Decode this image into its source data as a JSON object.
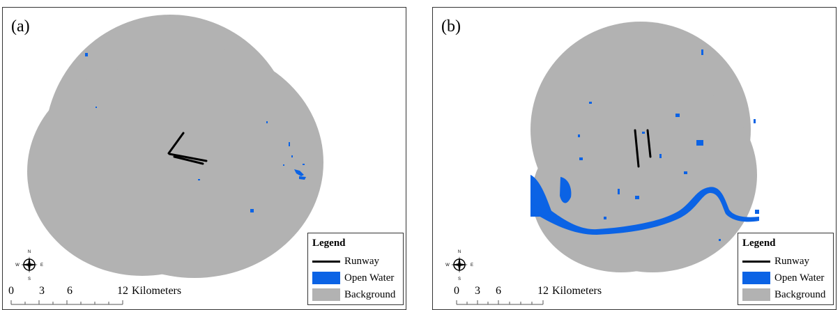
{
  "panels": [
    {
      "label": "(a)",
      "legend": {
        "title": "Legend",
        "items": [
          {
            "label": "Runway",
            "kind": "line",
            "color": "#000000"
          },
          {
            "label": "Open Water",
            "kind": "fill",
            "color": "#0b63e5"
          },
          {
            "label": "Background",
            "kind": "fill",
            "color": "#b2b2b2"
          }
        ]
      },
      "scale_bar": {
        "ticks": [
          "0",
          "3",
          "6",
          "12"
        ],
        "unit": "Kilometers"
      },
      "compass": {
        "n": "N",
        "s": "S",
        "e": "E",
        "w": "W"
      }
    },
    {
      "label": "(b)",
      "legend": {
        "title": "Legend",
        "items": [
          {
            "label": "Runway",
            "kind": "line",
            "color": "#000000"
          },
          {
            "label": "Open Water",
            "kind": "fill",
            "color": "#0b63e5"
          },
          {
            "label": "Background",
            "kind": "fill",
            "color": "#b2b2b2"
          }
        ]
      },
      "scale_bar": {
        "ticks": [
          "0",
          "3",
          "6",
          "12"
        ],
        "unit": "Kilometers"
      },
      "compass": {
        "n": "N",
        "s": "S",
        "e": "E",
        "w": "W"
      }
    }
  ],
  "colors": {
    "background": "#b2b2b2",
    "water": "#0b63e5",
    "runway": "#000000"
  }
}
